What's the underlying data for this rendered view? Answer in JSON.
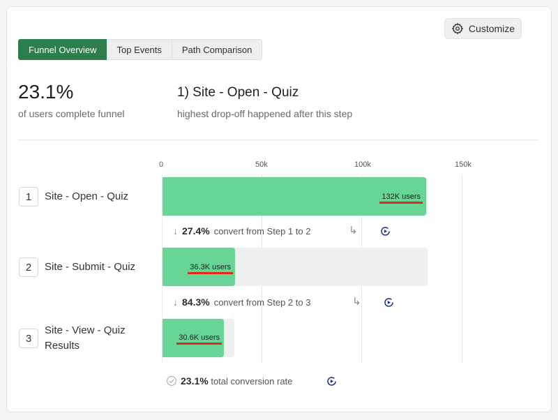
{
  "header": {
    "customize_label": "Customize"
  },
  "tabs": [
    {
      "label": "Funnel Overview",
      "active": true
    },
    {
      "label": "Top Events",
      "active": false
    },
    {
      "label": "Path Comparison",
      "active": false
    }
  ],
  "summary": {
    "completion_rate": "23.1%",
    "completion_caption": "of users complete funnel",
    "dropoff_step": "1) Site - Open - Quiz",
    "dropoff_caption": "highest drop-off happened after this step"
  },
  "axis": {
    "ticks": [
      "0",
      "50k",
      "100k",
      "150k"
    ]
  },
  "steps": [
    {
      "number": "1",
      "name": "Site - Open - Quiz",
      "users_label": "132K users"
    },
    {
      "number": "2",
      "name": "Site - Submit - Quiz",
      "users_label": "36.3K users"
    },
    {
      "number": "3",
      "name": "Site - View - Quiz Results",
      "users_label": "30.6K users"
    }
  ],
  "conversions": [
    {
      "rate": "27.4%",
      "text": "convert from Step 1 to 2"
    },
    {
      "rate": "84.3%",
      "text": "convert from Step 2 to 3"
    }
  ],
  "total": {
    "rate": "23.1%",
    "text": "total conversion rate"
  },
  "colors": {
    "accent": "#2e7d4f",
    "bar": "#66d596",
    "highlight": "#e0291b",
    "play": "#1f2f8a"
  },
  "chart_data": {
    "type": "bar",
    "orientation": "horizontal",
    "categories": [
      "Site - Open - Quiz",
      "Site - Submit - Quiz",
      "Site - View - Quiz Results"
    ],
    "values": [
      132000,
      36300,
      30600
    ],
    "xlim": [
      0,
      190000
    ],
    "x_ticks": [
      0,
      50000,
      100000,
      150000
    ],
    "grid": true
  }
}
